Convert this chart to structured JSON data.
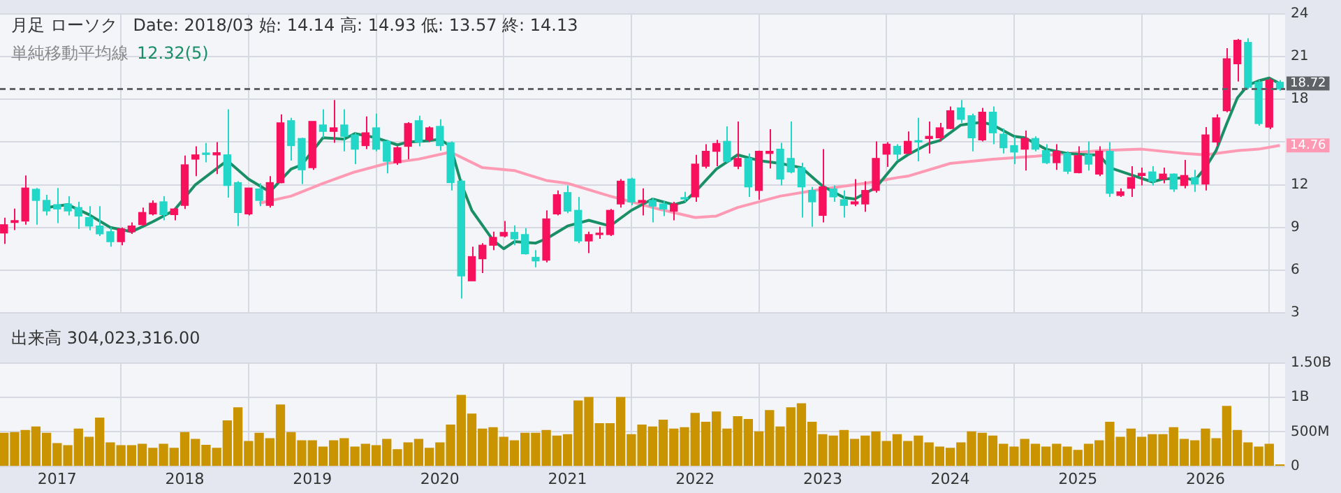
{
  "chart_data": [
    {
      "type": "candlestick",
      "title": "月足 ローソク   Date: 2018/03 始: 14.14 高: 14.93 低: 13.57 終: 14.13",
      "subtitle": "単純移動平均線",
      "x": [
        "2016-08",
        "2016-09",
        "2016-10",
        "2016-11",
        "2016-12",
        "2017-01",
        "2017-02",
        "2017-03",
        "2017-04",
        "2017-05",
        "2017-06",
        "2017-07",
        "2017-08",
        "2017-09",
        "2017-10",
        "2017-11",
        "2017-12",
        "2018-01",
        "2018-02",
        "2018-03",
        "2018-04",
        "2018-05",
        "2018-06",
        "2018-07",
        "2018-08",
        "2018-09",
        "2018-10",
        "2018-11",
        "2018-12",
        "2019-01",
        "2019-02",
        "2019-03",
        "2019-04",
        "2019-05",
        "2019-06",
        "2019-07",
        "2019-08",
        "2019-09",
        "2019-10",
        "2019-11",
        "2019-12",
        "2020-01",
        "2020-02",
        "2020-03",
        "2020-04",
        "2020-05",
        "2020-06",
        "2020-07",
        "2020-08",
        "2020-09",
        "2020-10",
        "2020-11",
        "2020-12",
        "2021-01",
        "2021-02",
        "2021-03",
        "2021-04",
        "2021-05",
        "2021-06",
        "2021-07",
        "2021-08",
        "2021-09",
        "2021-10",
        "2021-11",
        "2021-12",
        "2022-01",
        "2022-02",
        "2022-03",
        "2022-04",
        "2022-05",
        "2022-06",
        "2022-07",
        "2022-08",
        "2022-09",
        "2022-10",
        "2022-11",
        "2022-12",
        "2023-01",
        "2023-02",
        "2023-03",
        "2023-04",
        "2023-05",
        "2023-06",
        "2023-07",
        "2023-08",
        "2023-09",
        "2023-10",
        "2023-11",
        "2023-12",
        "2024-01",
        "2024-02",
        "2024-03",
        "2024-04",
        "2024-05",
        "2024-06",
        "2024-07",
        "2024-08",
        "2024-09",
        "2024-10",
        "2024-11",
        "2024-12",
        "2025-01",
        "2025-02",
        "2025-03",
        "2025-04",
        "2025-05",
        "2025-06",
        "2025-07",
        "2025-08",
        "2025-09",
        "2025-10",
        "2025-11",
        "2025-12",
        "2026-01",
        "2026-02",
        "2026-03",
        "2026-04",
        "2026-05",
        "2026-06",
        "2026-07",
        "2026-08"
      ],
      "ohlc": [
        [
          8.61,
          9.68,
          7.84,
          9.19
        ],
        [
          9.35,
          10.32,
          8.81,
          9.48
        ],
        [
          9.45,
          12.65,
          9.19,
          11.77
        ],
        [
          11.68,
          11.77,
          9.19,
          10.9
        ],
        [
          10.9,
          11.29,
          9.84,
          10.16
        ],
        [
          10.6,
          11.77,
          9.3,
          10.3
        ],
        [
          10.65,
          11.2,
          9.84,
          10.16
        ],
        [
          10.4,
          10.8,
          8.9,
          9.8
        ],
        [
          9.7,
          10.5,
          8.8,
          9.1
        ],
        [
          9.1,
          10.5,
          8.4,
          8.55
        ],
        [
          8.7,
          9.0,
          7.65,
          8.0
        ],
        [
          8.0,
          9.0,
          7.75,
          8.9
        ],
        [
          8.7,
          9.35,
          8.55,
          9.1
        ],
        [
          9.2,
          10.4,
          9.1,
          10.05
        ],
        [
          9.95,
          10.9,
          9.85,
          10.7
        ],
        [
          10.8,
          11.2,
          9.5,
          9.9
        ],
        [
          9.9,
          10.4,
          9.5,
          10.3
        ],
        [
          10.55,
          14.05,
          10.3,
          13.4
        ],
        [
          13.8,
          14.7,
          12.6,
          14.1
        ],
        [
          14.14,
          14.93,
          13.57,
          14.13
        ],
        [
          14.1,
          15.0,
          12.75,
          14.25
        ],
        [
          14.1,
          17.3,
          11.1,
          11.95
        ],
        [
          12.15,
          12.25,
          9.1,
          10.05
        ],
        [
          9.95,
          11.77,
          9.85,
          11.77
        ],
        [
          11.7,
          12.1,
          10.5,
          10.9
        ],
        [
          10.55,
          12.6,
          10.4,
          12.15
        ],
        [
          12.15,
          16.95,
          12.1,
          16.35
        ],
        [
          16.5,
          16.7,
          13.7,
          14.75
        ],
        [
          15.25,
          15.3,
          12.05,
          13.05
        ],
        [
          13.2,
          16.45,
          13.05,
          16.45
        ],
        [
          16.2,
          17.3,
          15.3,
          15.75
        ],
        [
          15.75,
          17.95,
          14.95,
          16.0
        ],
        [
          16.2,
          17.3,
          14.35,
          15.4
        ],
        [
          15.5,
          15.65,
          13.45,
          14.5
        ],
        [
          14.75,
          16.8,
          14.5,
          15.65
        ],
        [
          16.0,
          17.0,
          14.35,
          14.5
        ],
        [
          15.05,
          15.15,
          12.8,
          13.65
        ],
        [
          13.55,
          14.7,
          13.4,
          14.6
        ],
        [
          14.7,
          16.4,
          13.8,
          16.3
        ],
        [
          16.5,
          16.85,
          14.7,
          15.0
        ],
        [
          15.15,
          16.1,
          15.0,
          16.0
        ],
        [
          16.1,
          16.6,
          14.4,
          14.75
        ],
        [
          14.95,
          15.05,
          11.6,
          12.15
        ],
        [
          12.25,
          12.4,
          4.0,
          5.6
        ],
        [
          5.25,
          7.65,
          5.25,
          6.95
        ],
        [
          6.8,
          7.9,
          5.8,
          7.75
        ],
        [
          7.75,
          8.7,
          7.4,
          8.3
        ],
        [
          8.4,
          9.45,
          8.3,
          8.65
        ],
        [
          8.65,
          9.15,
          7.75,
          8.2
        ],
        [
          8.5,
          8.95,
          7.1,
          7.15
        ],
        [
          6.9,
          7.4,
          6.2,
          6.65
        ],
        [
          6.7,
          10.2,
          6.55,
          9.6
        ],
        [
          9.95,
          11.6,
          9.85,
          11.3
        ],
        [
          11.45,
          11.95,
          10.0,
          10.15
        ],
        [
          10.2,
          11.15,
          7.9,
          8.05
        ],
        [
          8.05,
          8.7,
          7.2,
          8.5
        ],
        [
          8.5,
          9.05,
          8.2,
          8.6
        ],
        [
          8.5,
          10.3,
          8.4,
          10.2
        ],
        [
          10.65,
          12.4,
          10.4,
          12.25
        ],
        [
          12.4,
          12.5,
          10.55,
          10.8
        ],
        [
          10.75,
          11.75,
          9.85,
          10.9
        ],
        [
          10.9,
          11.1,
          9.35,
          10.5
        ],
        [
          10.65,
          10.85,
          9.8,
          10.3
        ],
        [
          10.15,
          10.8,
          9.5,
          10.65
        ],
        [
          11.05,
          11.5,
          10.8,
          11.0
        ],
        [
          11.15,
          14.1,
          10.8,
          13.45
        ],
        [
          13.3,
          14.85,
          13.15,
          14.35
        ],
        [
          14.35,
          15.15,
          13.3,
          14.9
        ],
        [
          15.05,
          16.1,
          13.55,
          13.65
        ],
        [
          13.3,
          16.45,
          13.1,
          13.85
        ],
        [
          13.85,
          14.2,
          11.15,
          11.85
        ],
        [
          11.6,
          14.4,
          10.95,
          14.35
        ],
        [
          14.2,
          15.9,
          13.15,
          14.35
        ],
        [
          14.5,
          14.95,
          11.95,
          12.4
        ],
        [
          13.85,
          16.45,
          12.8,
          12.9
        ],
        [
          13.2,
          13.55,
          9.7,
          11.85
        ],
        [
          11.6,
          11.85,
          9.05,
          10.8
        ],
        [
          9.85,
          14.5,
          9.35,
          11.85
        ],
        [
          11.7,
          11.95,
          10.8,
          11.15
        ],
        [
          10.95,
          11.6,
          9.7,
          10.55
        ],
        [
          10.65,
          12.4,
          10.5,
          10.8
        ],
        [
          10.65,
          12.25,
          10.1,
          11.6
        ],
        [
          11.6,
          15.05,
          11.45,
          13.85
        ],
        [
          14.15,
          15.0,
          13.25,
          14.85
        ],
        [
          14.7,
          14.85,
          13.7,
          14.15
        ],
        [
          14.2,
          15.75,
          14.2,
          15.05
        ],
        [
          15.05,
          16.7,
          13.65,
          15.0
        ],
        [
          15.25,
          16.45,
          14.2,
          15.4
        ],
        [
          15.3,
          16.35,
          15.05,
          16.0
        ],
        [
          15.95,
          17.5,
          15.9,
          17.2
        ],
        [
          17.4,
          17.95,
          16.35,
          16.6
        ],
        [
          16.85,
          17.0,
          14.35,
          15.3
        ],
        [
          15.15,
          17.4,
          15.05,
          17.1
        ],
        [
          17.1,
          17.5,
          14.85,
          15.65
        ],
        [
          15.55,
          15.95,
          14.2,
          14.6
        ],
        [
          14.75,
          15.4,
          13.45,
          14.3
        ],
        [
          14.5,
          15.8,
          13.0,
          15.25
        ],
        [
          15.25,
          15.4,
          14.35,
          14.5
        ],
        [
          14.4,
          14.85,
          13.45,
          13.55
        ],
        [
          13.55,
          14.85,
          13.05,
          14.35
        ],
        [
          14.2,
          14.35,
          12.75,
          12.95
        ],
        [
          12.85,
          14.7,
          12.8,
          14.05
        ],
        [
          14.1,
          15.05,
          13.0,
          13.45
        ],
        [
          12.75,
          14.7,
          12.6,
          14.35
        ],
        [
          14.35,
          15.0,
          11.15,
          11.4
        ],
        [
          11.25,
          11.75,
          11.15,
          11.5
        ],
        [
          11.75,
          13.3,
          11.15,
          12.5
        ],
        [
          12.65,
          13.2,
          11.95,
          12.8
        ],
        [
          12.9,
          13.3,
          11.95,
          12.25
        ],
        [
          12.4,
          13.2,
          12.1,
          12.75
        ],
        [
          12.75,
          12.8,
          11.5,
          11.7
        ],
        [
          11.95,
          13.75,
          11.75,
          12.65
        ],
        [
          12.5,
          13.05,
          11.5,
          12.05
        ],
        [
          12.05,
          16.05,
          11.6,
          15.5
        ],
        [
          15.0,
          16.95,
          14.7,
          16.7
        ],
        [
          17.2,
          21.6,
          17.1,
          20.85
        ],
        [
          20.5,
          22.25,
          19.25,
          22.15
        ],
        [
          22.0,
          22.3,
          18.7,
          18.85
        ],
        [
          19.2,
          19.35,
          16.15,
          16.3
        ],
        [
          16.05,
          19.5,
          15.9,
          19.35
        ],
        [
          19.2,
          19.35,
          18.6,
          18.72
        ]
      ],
      "colors": [
        "#f7105c",
        "#f7105c",
        "#f7105c",
        "#22d6c8",
        "#22d6c8",
        "#22d6c8",
        "#22d6c8",
        "#22d6c8",
        "#22d6c8",
        "#22d6c8",
        "#22d6c8",
        "#f7105c",
        "#f7105c",
        "#f7105c",
        "#f7105c",
        "#22d6c8",
        "#f7105c",
        "#f7105c",
        "#f7105c",
        "#22d6c8",
        "#f7105c",
        "#22d6c8",
        "#22d6c8",
        "#f7105c",
        "#22d6c8",
        "#f7105c",
        "#f7105c",
        "#22d6c8",
        "#22d6c8",
        "#f7105c",
        "#22d6c8",
        "#f7105c",
        "#22d6c8",
        "#22d6c8",
        "#f7105c",
        "#22d6c8",
        "#22d6c8",
        "#f7105c",
        "#f7105c",
        "#22d6c8",
        "#f7105c",
        "#22d6c8",
        "#22d6c8",
        "#22d6c8",
        "#f7105c",
        "#f7105c",
        "#f7105c",
        "#f7105c",
        "#22d6c8",
        "#22d6c8",
        "#22d6c8",
        "#f7105c",
        "#f7105c",
        "#22d6c8",
        "#22d6c8",
        "#f7105c",
        "#f7105c",
        "#f7105c",
        "#f7105c",
        "#22d6c8",
        "#f7105c",
        "#22d6c8",
        "#22d6c8",
        "#f7105c",
        "#22d6c8",
        "#f7105c",
        "#f7105c",
        "#f7105c",
        "#22d6c8",
        "#f7105c",
        "#22d6c8",
        "#f7105c",
        "#f7105c",
        "#22d6c8",
        "#22d6c8",
        "#22d6c8",
        "#22d6c8",
        "#f7105c",
        "#22d6c8",
        "#22d6c8",
        "#f7105c",
        "#f7105c",
        "#f7105c",
        "#f7105c",
        "#22d6c8",
        "#f7105c",
        "#22d6c8",
        "#f7105c",
        "#f7105c",
        "#f7105c",
        "#22d6c8",
        "#22d6c8",
        "#f7105c",
        "#22d6c8",
        "#22d6c8",
        "#22d6c8",
        "#f7105c",
        "#22d6c8",
        "#22d6c8",
        "#f7105c",
        "#22d6c8",
        "#f7105c",
        "#22d6c8",
        "#f7105c",
        "#22d6c8",
        "#f7105c",
        "#f7105c",
        "#f7105c",
        "#22d6c8",
        "#f7105c",
        "#22d6c8",
        "#f7105c",
        "#22d6c8",
        "#f7105c",
        "#f7105c",
        "#f7105c",
        "#f7105c",
        "#22d6c8",
        "#22d6c8",
        "#f7105c",
        "#22d6c8"
      ],
      "series": [
        {
          "type": "line",
          "name": "12.32(5)",
          "color": "#1a8f66",
          "x": [
            "2016-12",
            "2017-02",
            "2017-04",
            "2017-06",
            "2017-08",
            "2017-10",
            "2017-12",
            "2018-02",
            "2018-05",
            "2018-07",
            "2018-09",
            "2018-11",
            "2018-12",
            "2019-02",
            "2019-04",
            "2019-05",
            "2019-07",
            "2019-09",
            "2019-10",
            "2019-12",
            "2020-01",
            "2020-02",
            "2020-03",
            "2020-04",
            "2020-06",
            "2020-07",
            "2020-08",
            "2020-10",
            "2020-11",
            "2021-01",
            "2021-03",
            "2021-05",
            "2021-07",
            "2021-09",
            "2021-11",
            "2021-12",
            "2022-01",
            "2022-03",
            "2022-05",
            "2022-07",
            "2022-09",
            "2022-11",
            "2023-01",
            "2023-03",
            "2023-04",
            "2023-06",
            "2023-08",
            "2023-09",
            "2023-11",
            "2023-12",
            "2024-02",
            "2024-04",
            "2024-05",
            "2024-07",
            "2024-08",
            "2024-10",
            "2024-12",
            "2025-02",
            "2025-03",
            "2025-04",
            "2025-06",
            "2025-08",
            "2025-09",
            "2025-11",
            "2025-12",
            "2026-01",
            "2026-02",
            "2026-03",
            "2026-04",
            "2026-05",
            "2026-06",
            "2026-07",
            "2026-08"
          ],
          "values": [
            10.4,
            10.6,
            9.9,
            9.0,
            8.7,
            9.4,
            10.2,
            12.0,
            13.7,
            12.4,
            11.5,
            13.1,
            13.4,
            15.3,
            15.2,
            15.6,
            15.3,
            14.8,
            15.0,
            15.1,
            15.2,
            14.7,
            12.1,
            10.2,
            8.1,
            7.5,
            8.0,
            7.9,
            8.2,
            9.1,
            9.5,
            9.1,
            10.2,
            11.0,
            10.6,
            10.8,
            11.5,
            13.1,
            14.1,
            13.7,
            13.5,
            13.2,
            11.9,
            11.1,
            11.0,
            11.8,
            13.6,
            14.1,
            14.9,
            15.1,
            16.2,
            16.4,
            16.2,
            15.4,
            15.3,
            14.5,
            14.2,
            14.1,
            14.1,
            13.2,
            12.7,
            12.2,
            12.4,
            12.5,
            12.3,
            13.2,
            14.4,
            16.3,
            18.1,
            19.0,
            19.3,
            19.5,
            19.1
          ]
        },
        {
          "type": "line",
          "color": "#ff9ab4",
          "x": [
            "2018-08",
            "2018-11",
            "2019-02",
            "2019-05",
            "2019-08",
            "2019-11",
            "2020-02",
            "2020-05",
            "2020-08",
            "2020-11",
            "2021-01",
            "2021-05",
            "2021-09",
            "2022-01",
            "2022-03",
            "2022-05",
            "2022-09",
            "2023-01",
            "2023-05",
            "2023-08",
            "2023-09",
            "2024-01",
            "2024-05",
            "2024-09",
            "2025-03",
            "2025-07",
            "2025-11",
            "2026-01",
            "2026-04",
            "2026-06",
            "2026-08"
          ],
          "values": [
            10.7,
            11.2,
            12.1,
            12.9,
            13.5,
            13.8,
            14.3,
            13.2,
            13.0,
            12.3,
            12.1,
            11.2,
            10.4,
            9.7,
            9.8,
            10.4,
            11.2,
            11.7,
            12.1,
            12.5,
            12.6,
            13.5,
            13.8,
            14.0,
            14.4,
            14.5,
            14.2,
            14.1,
            14.4,
            14.5,
            14.76
          ]
        }
      ],
      "xlim": [
        "2016-07-20",
        "2026-08-16"
      ],
      "xticks": [
        "2017",
        "2018",
        "2019",
        "2020",
        "2021",
        "2022",
        "2023",
        "2024",
        "2025",
        "2026"
      ],
      "ylim": [
        3,
        24
      ],
      "yticks": [
        3,
        6,
        9,
        12,
        {
          "value": 15,
          "label": null
        },
        18,
        21,
        24
      ],
      "grid": true,
      "tick_labels": "y",
      "ref_lines": [
        {
          "axis": "y",
          "value": 18.72,
          "label": "18.72",
          "color": "#5f6368",
          "line_style": "dashed"
        }
      ],
      "annotations": [
        {
          "text": "14.76",
          "x": "2026-08",
          "y": 14.76
        }
      ]
    },
    {
      "type": "bar",
      "title": "出来高 304,023,316.00",
      "color": "#c99400",
      "x": [
        "2016-08",
        "2016-09",
        "2016-10",
        "2016-11",
        "2016-12",
        "2017-01",
        "2017-02",
        "2017-03",
        "2017-04",
        "2017-05",
        "2017-06",
        "2017-07",
        "2017-08",
        "2017-09",
        "2017-10",
        "2017-11",
        "2017-12",
        "2018-01",
        "2018-02",
        "2018-03",
        "2018-04",
        "2018-05",
        "2018-06",
        "2018-07",
        "2018-08",
        "2018-09",
        "2018-10",
        "2018-11",
        "2018-12",
        "2019-01",
        "2019-02",
        "2019-03",
        "2019-04",
        "2019-05",
        "2019-06",
        "2019-07",
        "2019-08",
        "2019-09",
        "2019-10",
        "2019-11",
        "2019-12",
        "2020-01",
        "2020-02",
        "2020-03",
        "2020-04",
        "2020-05",
        "2020-06",
        "2020-07",
        "2020-08",
        "2020-09",
        "2020-10",
        "2020-11",
        "2020-12",
        "2021-01",
        "2021-02",
        "2021-03",
        "2021-04",
        "2021-05",
        "2021-06",
        "2021-07",
        "2021-08",
        "2021-09",
        "2021-10",
        "2021-11",
        "2021-12",
        "2022-01",
        "2022-02",
        "2022-03",
        "2022-04",
        "2022-05",
        "2022-06",
        "2022-07",
        "2022-08",
        "2022-09",
        "2022-10",
        "2022-11",
        "2022-12",
        "2023-01",
        "2023-02",
        "2023-03",
        "2023-04",
        "2023-05",
        "2023-06",
        "2023-07",
        "2023-08",
        "2023-09",
        "2023-10",
        "2023-11",
        "2023-12",
        "2024-01",
        "2024-02",
        "2024-03",
        "2024-04",
        "2024-05",
        "2024-06",
        "2024-07",
        "2024-08",
        "2024-09",
        "2024-10",
        "2024-11",
        "2024-12",
        "2025-01",
        "2025-02",
        "2025-03",
        "2025-04",
        "2025-05",
        "2025-06",
        "2025-07",
        "2025-08",
        "2025-09",
        "2025-10",
        "2025-11",
        "2025-12",
        "2026-01",
        "2026-02",
        "2026-03",
        "2026-04",
        "2026-05",
        "2026-06",
        "2026-07",
        "2026-08"
      ],
      "values": [
        480000000,
        490000000,
        520000000,
        570000000,
        480000000,
        330000000,
        300000000,
        540000000,
        420000000,
        700000000,
        340000000,
        300000000,
        300000000,
        320000000,
        260000000,
        320000000,
        260000000,
        490000000,
        390000000,
        304023316,
        260000000,
        660000000,
        850000000,
        360000000,
        480000000,
        400000000,
        890000000,
        490000000,
        370000000,
        370000000,
        280000000,
        370000000,
        400000000,
        280000000,
        320000000,
        300000000,
        390000000,
        240000000,
        340000000,
        390000000,
        260000000,
        340000000,
        600000000,
        1030000000,
        760000000,
        540000000,
        560000000,
        420000000,
        370000000,
        480000000,
        480000000,
        520000000,
        440000000,
        460000000,
        950000000,
        1000000000,
        620000000,
        620000000,
        1000000000,
        460000000,
        600000000,
        570000000,
        670000000,
        540000000,
        560000000,
        770000000,
        640000000,
        790000000,
        540000000,
        720000000,
        680000000,
        500000000,
        810000000,
        570000000,
        850000000,
        910000000,
        640000000,
        460000000,
        440000000,
        520000000,
        390000000,
        440000000,
        500000000,
        360000000,
        460000000,
        360000000,
        440000000,
        340000000,
        280000000,
        260000000,
        340000000,
        500000000,
        480000000,
        440000000,
        320000000,
        280000000,
        390000000,
        320000000,
        280000000,
        320000000,
        280000000,
        230000000,
        320000000,
        370000000,
        640000000,
        420000000,
        540000000,
        420000000,
        460000000,
        460000000,
        560000000,
        390000000,
        370000000,
        540000000,
        400000000,
        870000000,
        520000000,
        340000000,
        280000000,
        320000000,
        20000000
      ],
      "xlim": [
        "2016-07-20",
        "2026-08-16"
      ],
      "xticks": [
        "2017",
        "2018",
        "2019",
        "2020",
        "2021",
        "2022",
        "2023",
        "2024",
        "2025",
        "2026"
      ],
      "ylim": [
        0,
        1500000000
      ],
      "yticks": [
        0,
        {
          "value": 500000000,
          "label": "500M"
        },
        {
          "value": 1000000000,
          "label": "1B"
        },
        {
          "value": 1500000000,
          "label": "1.50B"
        }
      ],
      "grid": true
    }
  ]
}
